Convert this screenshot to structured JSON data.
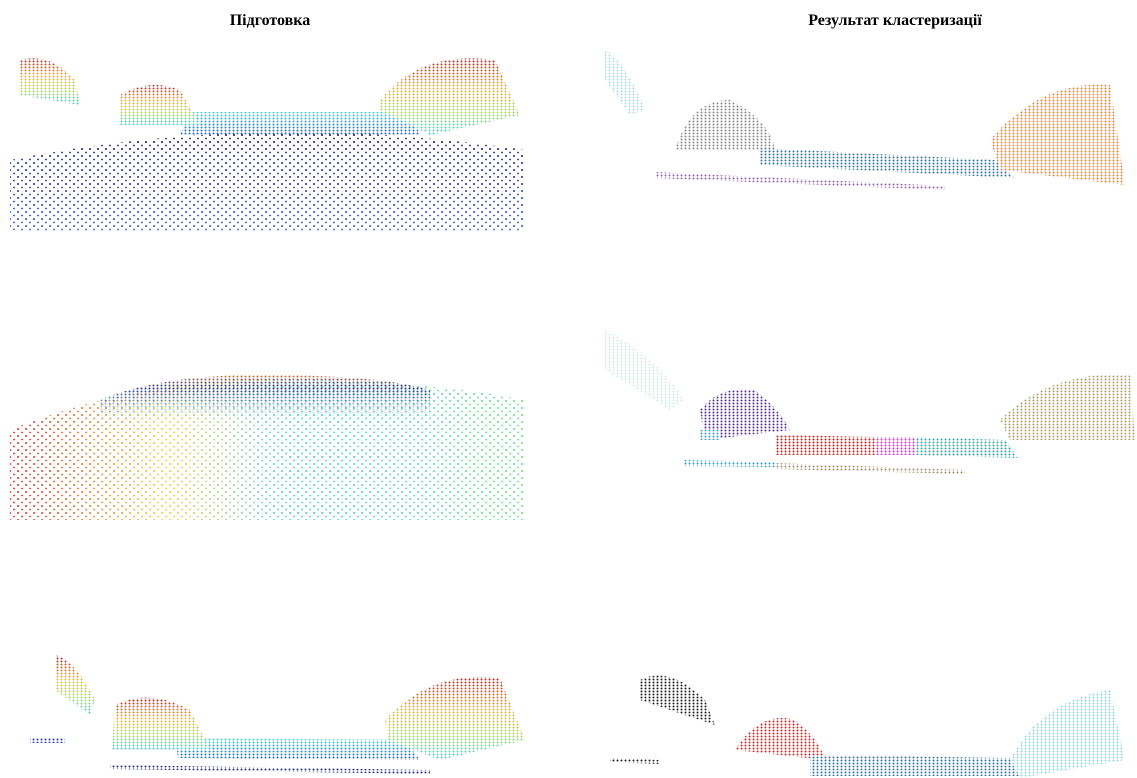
{
  "header": {
    "left_title": "Підготовка",
    "right_title": "Результат кластеризації"
  }
}
